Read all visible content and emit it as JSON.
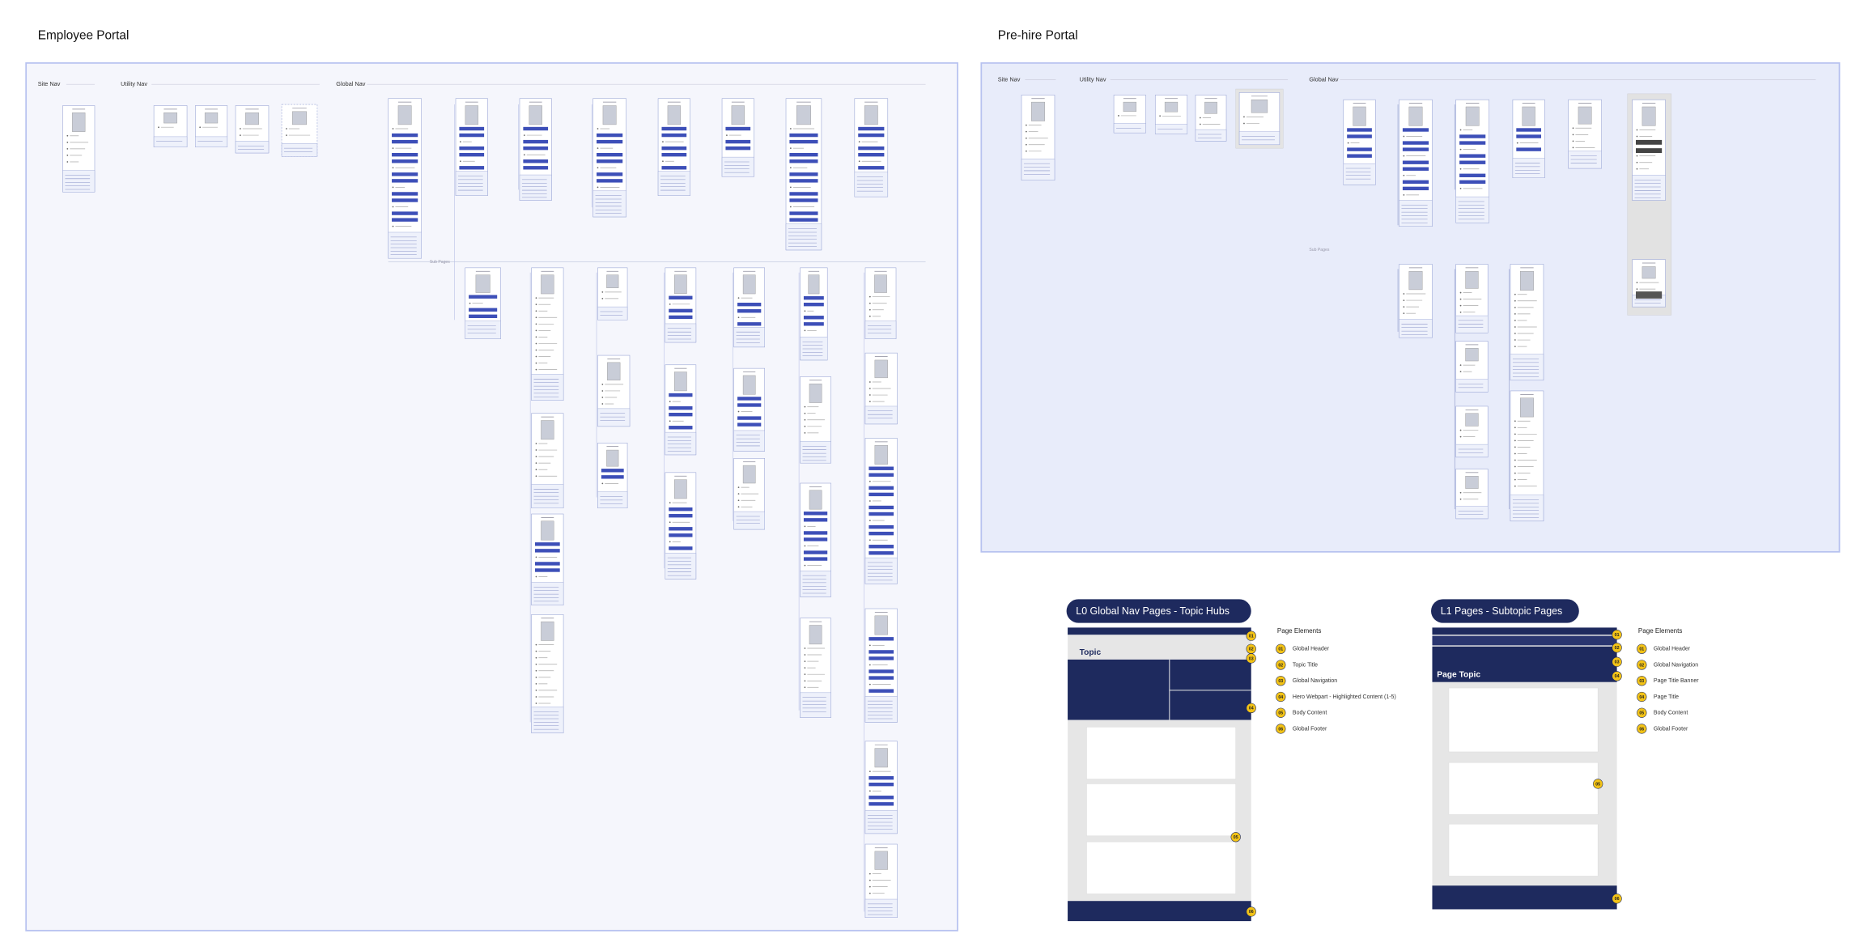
{
  "employee_portal": {
    "title": "Employee Portal",
    "sections": [
      "Site Nav",
      "Utility Nav",
      "Global Nav"
    ],
    "sub_pages_label": "Sub Pages"
  },
  "prehire_portal": {
    "title": "Pre-hire Portal",
    "sections": [
      "Site Nav",
      "Utility Nav",
      "Global Nav"
    ],
    "sub_pages_label": "Sub Pages"
  },
  "templates": [
    {
      "title": "L0 Global Nav Pages - Topic Hubs",
      "topic_label": "Topic",
      "elements_heading": "Page Elements",
      "badges": [
        "01",
        "02",
        "03",
        "04",
        "05",
        "06"
      ],
      "elements": [
        {
          "number": "01",
          "label": "Global Header"
        },
        {
          "number": "02",
          "label": "Topic Title"
        },
        {
          "number": "03",
          "label": "Global Navigation"
        },
        {
          "number": "04",
          "label": "Hero Webpart - Highlighted Content (1-5)"
        },
        {
          "number": "05",
          "label": "Body Content"
        },
        {
          "number": "06",
          "label": "Global Footer"
        }
      ]
    },
    {
      "title": "L1 Pages - Subtopic Pages",
      "topic_label": "Page Topic",
      "elements_heading": "Page Elements",
      "badges": [
        "01",
        "02",
        "03",
        "04",
        "05",
        "06"
      ],
      "elements": [
        {
          "number": "01",
          "label": "Global Header"
        },
        {
          "number": "02",
          "label": "Global Navigation"
        },
        {
          "number": "03",
          "label": "Page Title Banner"
        },
        {
          "number": "04",
          "label": "Page Title"
        },
        {
          "number": "05",
          "label": "Body Content"
        },
        {
          "number": "06",
          "label": "Global Footer"
        }
      ]
    }
  ]
}
